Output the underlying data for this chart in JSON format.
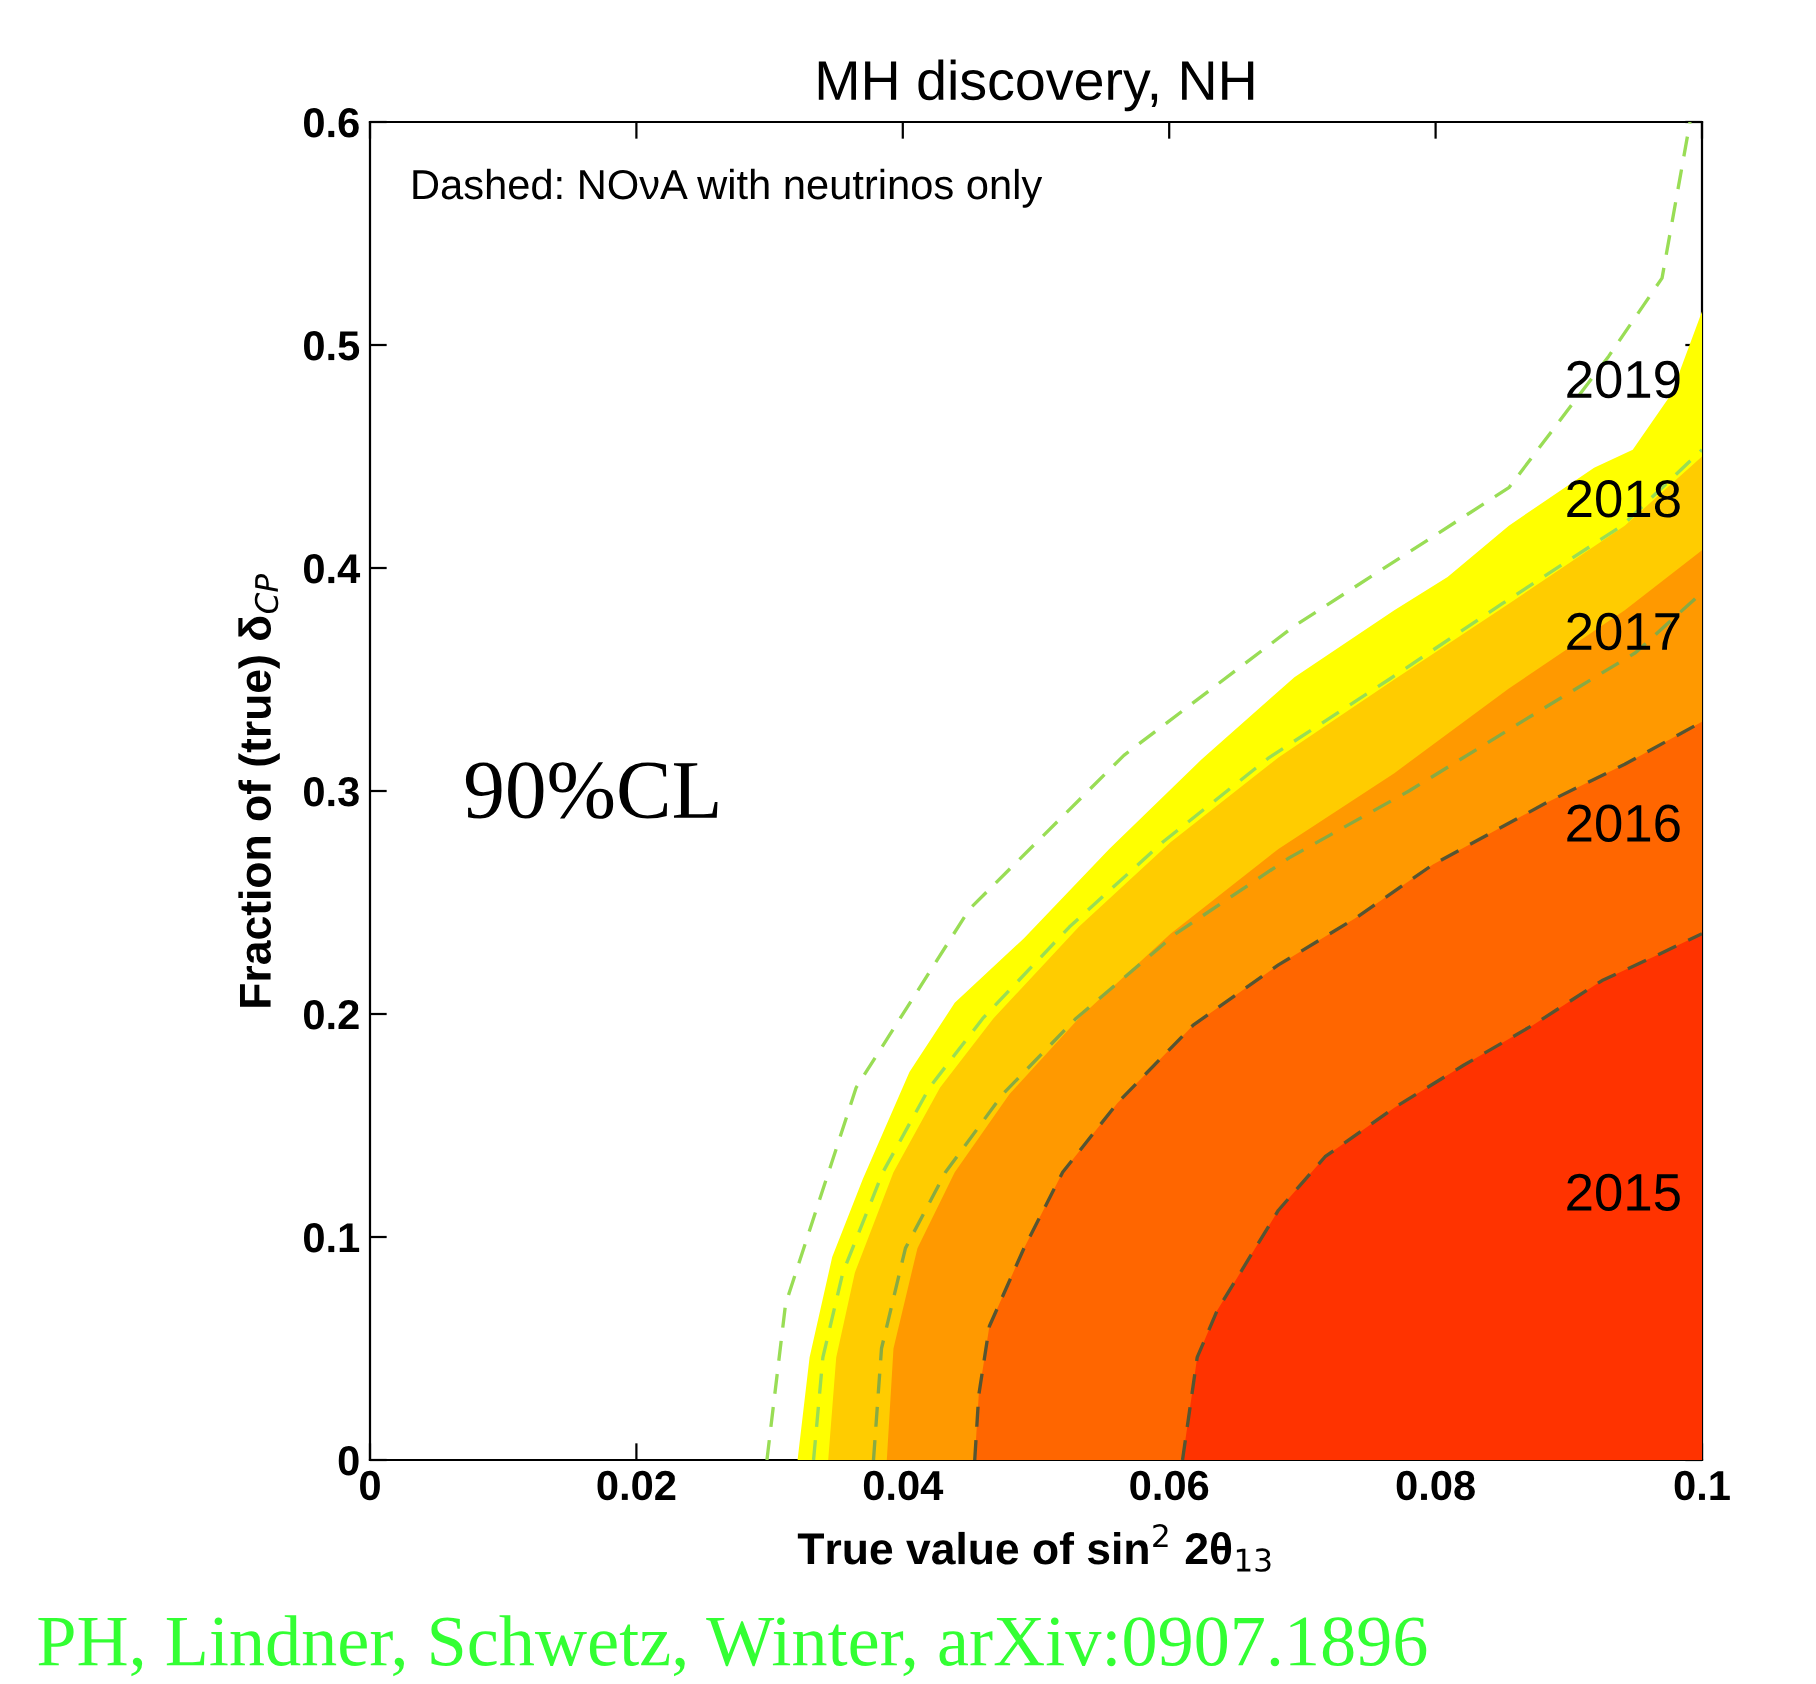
{
  "chart_data": {
    "type": "area",
    "title": "MH discovery, NH",
    "xlabel": "True value of sin$^{2}$ 2θ$_{13}$",
    "ylabel": "Fraction of (true) δ$_{CP}$",
    "xlim": [
      0,
      0.1
    ],
    "ylim": [
      0,
      0.6
    ],
    "xticks": [
      0,
      {
        "value": 0.02,
        "label": "0.02"
      },
      {
        "value": 0.04,
        "label": "0.04"
      },
      {
        "value": 0.06,
        "label": "0.06"
      },
      {
        "value": 0.08,
        "label": "0.08"
      },
      {
        "value": 0.1,
        "label": "0.1"
      }
    ],
    "yticks": [
      0,
      0.1,
      0.2,
      0.3,
      0.4,
      0.5,
      0.6
    ],
    "grid": false,
    "legend": false,
    "annotations": [
      "Dashed: NOνA with neutrinos only",
      "90%CL",
      "PH, Lindner, Schwetz, Winter, arXiv:0907.1896"
    ],
    "series": [
      {
        "name": "2015",
        "color": "#ff3300",
        "line_style": "dashed",
        "x": [
          0.061,
          0.0621,
          0.0636,
          0.0682,
          0.0717,
          0.0769,
          0.0821,
          0.0873,
          0.0925,
          0.0965,
          0.1
        ],
        "values": [
          0,
          0.046,
          0.067,
          0.112,
          0.136,
          0.158,
          0.177,
          0.195,
          0.215,
          0.226,
          0.236
        ]
      },
      {
        "name": "2016",
        "color": "#ff6600",
        "line_style": "dashed",
        "x": [
          0.0454,
          0.0457,
          0.0465,
          0.0491,
          0.052,
          0.0561,
          0.0618,
          0.0682,
          0.074,
          0.0798,
          0.0884,
          0.0942,
          0.1
        ],
        "values": [
          0,
          0.029,
          0.06,
          0.095,
          0.129,
          0.16,
          0.195,
          0.222,
          0.243,
          0.267,
          0.295,
          0.312,
          0.331
        ]
      },
      {
        "name": "2017",
        "color": "#ff9900",
        "x": [
          0.0388,
          0.0393,
          0.0411,
          0.0439,
          0.048,
          0.0532,
          0.0601,
          0.0682,
          0.0769,
          0.0855,
          0.0942,
          0.1
        ],
        "values": [
          0,
          0.05,
          0.095,
          0.129,
          0.164,
          0.198,
          0.236,
          0.274,
          0.308,
          0.346,
          0.381,
          0.408
        ]
      },
      {
        "name": "2018",
        "color": "#ffcc00",
        "x": [
          0.0344,
          0.035,
          0.0364,
          0.0393,
          0.0428,
          0.0468,
          0.0532,
          0.0601,
          0.0682,
          0.0769,
          0.0855,
          0.0942,
          0.1
        ],
        "values": [
          0,
          0.046,
          0.084,
          0.129,
          0.167,
          0.198,
          0.239,
          0.277,
          0.315,
          0.35,
          0.384,
          0.419,
          0.45
        ]
      },
      {
        "name": "2019",
        "color": "#ffff00",
        "x": [
          0.0321,
          0.033,
          0.0347,
          0.037,
          0.0405,
          0.0439,
          0.0491,
          0.0555,
          0.0624,
          0.0694,
          0.0769,
          0.0809,
          0.0855,
          0.0919,
          0.0948,
          0.0977,
          0.1
        ],
        "values": [
          0,
          0.046,
          0.091,
          0.126,
          0.174,
          0.205,
          0.234,
          0.274,
          0.314,
          0.351,
          0.381,
          0.396,
          0.419,
          0.445,
          0.453,
          0.478,
          0.515
        ]
      },
      {
        "type": "line",
        "line_style": "dashed",
        "color": "#88aa44",
        "x": [
          0.0378,
          0.0384,
          0.0402,
          0.0432,
          0.0475,
          0.053,
          0.0605,
          0.069,
          0.078,
          0.087,
          0.095,
          0.1
        ],
        "values": [
          0,
          0.05,
          0.095,
          0.129,
          0.164,
          0.198,
          0.236,
          0.27,
          0.3,
          0.333,
          0.362,
          0.389
        ]
      },
      {
        "type": "line",
        "line_style": "dashed",
        "color": "#99dd55",
        "x": [
          0.0333,
          0.034,
          0.0355,
          0.0385,
          0.042,
          0.046,
          0.0525,
          0.0595,
          0.0675,
          0.0765,
          0.085,
          0.094,
          0.1
        ],
        "values": [
          0,
          0.046,
          0.084,
          0.129,
          0.167,
          0.198,
          0.239,
          0.277,
          0.315,
          0.35,
          0.384,
          0.419,
          0.453
        ]
      },
      {
        "type": "line",
        "line_style": "dashed",
        "color": "#99dd55",
        "x": [
          0.0298,
          0.0312,
          0.0365,
          0.045,
          0.0566,
          0.0694,
          0.0855,
          0.093,
          0.097,
          0.0991
        ],
        "values": [
          0,
          0.07,
          0.167,
          0.247,
          0.316,
          0.374,
          0.436,
          0.495,
          0.53,
          0.6
        ]
      }
    ]
  }
}
